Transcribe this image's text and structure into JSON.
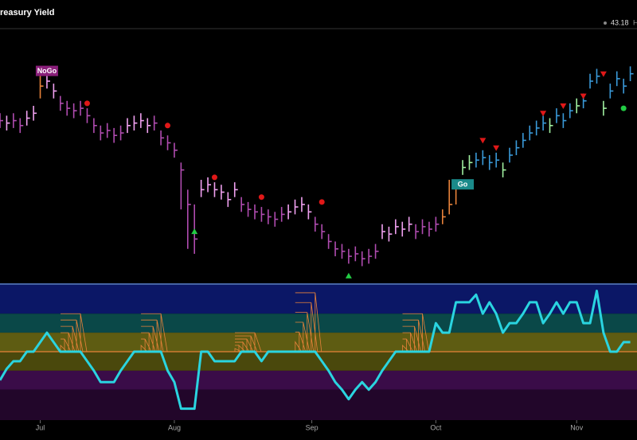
{
  "header": {
    "title": "reasury Yield",
    "price": "43.18",
    "extra": "H"
  },
  "chart_data": {
    "type": "ohlc",
    "xlim": [
      0,
      95
    ],
    "xticks": [
      {
        "value": 6,
        "label": "Jul"
      },
      {
        "value": 26,
        "label": "Aug"
      },
      {
        "value": 46.5,
        "label": "Sep"
      },
      {
        "value": 65,
        "label": "Oct"
      },
      {
        "value": 86,
        "label": "Nov"
      }
    ],
    "ylim": [
      0,
      100
    ],
    "high": [
      67,
      66,
      67,
      65,
      68,
      70,
      83,
      83,
      79,
      74,
      72,
      71,
      72,
      69,
      65,
      62,
      63,
      61,
      62,
      65,
      66,
      67,
      65,
      66,
      60,
      58,
      55,
      47,
      36,
      30,
      40,
      41,
      39,
      38,
      35,
      39,
      33,
      31,
      30,
      29,
      28,
      27,
      29,
      30,
      32,
      33,
      30,
      25,
      22,
      18,
      15,
      14,
      12,
      13,
      11,
      12,
      14,
      22,
      21,
      24,
      23,
      25,
      22,
      24,
      23,
      25,
      28,
      40,
      40,
      48,
      50,
      51,
      52,
      50,
      51,
      47,
      53,
      56,
      59,
      62,
      64,
      66,
      65,
      69,
      67,
      71,
      73,
      75,
      83,
      85,
      72,
      79,
      84,
      81,
      86
    ],
    "low": [
      61,
      60,
      61,
      59,
      62,
      64,
      73,
      77,
      73,
      68,
      66,
      65,
      66,
      63,
      59,
      56,
      57,
      55,
      56,
      59,
      60,
      61,
      59,
      60,
      54,
      52,
      49,
      28,
      12,
      10,
      33,
      35,
      33,
      32,
      29,
      33,
      27,
      25,
      24,
      23,
      22,
      21,
      23,
      24,
      26,
      27,
      24,
      19,
      16,
      12,
      9,
      8,
      6,
      7,
      5,
      6,
      8,
      16,
      15,
      18,
      17,
      19,
      16,
      18,
      17,
      19,
      22,
      26,
      30,
      42,
      44,
      45,
      46,
      44,
      45,
      41,
      47,
      50,
      53,
      56,
      58,
      60,
      59,
      63,
      61,
      65,
      67,
      69,
      77,
      79,
      66,
      73,
      78,
      75,
      80
    ],
    "close": [
      64,
      63,
      64,
      62,
      65,
      67,
      78,
      80,
      76,
      71,
      69,
      68,
      69,
      66,
      62,
      59,
      60,
      58,
      59,
      62,
      63,
      64,
      62,
      63,
      57,
      55,
      52,
      44,
      30,
      16,
      36,
      38,
      36,
      35,
      32,
      36,
      30,
      28,
      27,
      26,
      25,
      24,
      26,
      27,
      29,
      30,
      27,
      22,
      19,
      15,
      12,
      11,
      9,
      10,
      8,
      9,
      11,
      19,
      18,
      21,
      20,
      22,
      19,
      21,
      20,
      22,
      25,
      30,
      38,
      45,
      47,
      48,
      49,
      47,
      48,
      44,
      50,
      53,
      56,
      59,
      61,
      63,
      62,
      66,
      64,
      68,
      70,
      72,
      80,
      82,
      69,
      76,
      81,
      78,
      83
    ],
    "colors": [
      "#b04cb0",
      "#f0a0f0",
      "#b04cb0",
      "#b04cb0",
      "#f0a0f0",
      "#f0a0f0",
      "#e8823a",
      "#f0a0f0",
      "#f0a0f0",
      "#b04cb0",
      "#b04cb0",
      "#b04cb0",
      "#b04cb0",
      "#b04cb0",
      "#b04cb0",
      "#b04cb0",
      "#b04cb0",
      "#b04cb0",
      "#b04cb0",
      "#f0a0f0",
      "#f0a0f0",
      "#f0a0f0",
      "#f0a0f0",
      "#b04cb0",
      "#b04cb0",
      "#b04cb0",
      "#b04cb0",
      "#b04cb0",
      "#b04cb0",
      "#b04cb0",
      "#f0a0f0",
      "#f0a0f0",
      "#f0a0f0",
      "#f0a0f0",
      "#f0a0f0",
      "#f0a0f0",
      "#b04cb0",
      "#b04cb0",
      "#b04cb0",
      "#b04cb0",
      "#b04cb0",
      "#b04cb0",
      "#b04cb0",
      "#f0a0f0",
      "#f0a0f0",
      "#f0a0f0",
      "#f0a0f0",
      "#b04cb0",
      "#b04cb0",
      "#b04cb0",
      "#b04cb0",
      "#b04cb0",
      "#b04cb0",
      "#b04cb0",
      "#b04cb0",
      "#b04cb0",
      "#b04cb0",
      "#f0a0f0",
      "#f0a0f0",
      "#f0a0f0",
      "#f0a0f0",
      "#f0a0f0",
      "#b04cb0",
      "#b04cb0",
      "#b04cb0",
      "#b04cb0",
      "#e8823a",
      "#e8823a",
      "#e8823a",
      "#a0f0a0",
      "#a0f0a0",
      "#3a9ad9",
      "#3a9ad9",
      "#3a9ad9",
      "#3a9ad9",
      "#a0f0a0",
      "#3a9ad9",
      "#3a9ad9",
      "#3a9ad9",
      "#3a9ad9",
      "#3a9ad9",
      "#3a9ad9",
      "#a0f0a0",
      "#3a9ad9",
      "#3a9ad9",
      "#3a9ad9",
      "#a0f0a0",
      "#3a9ad9",
      "#3a9ad9",
      "#3a9ad9",
      "#a0f0a0",
      "#3a9ad9",
      "#3a9ad9",
      "#3a9ad9",
      "#3a9ad9"
    ],
    "markers": [
      {
        "shape": "circle",
        "color": "#e01818",
        "x": [
          13,
          25,
          32,
          39,
          48
        ],
        "values": [
          71,
          62,
          41,
          33,
          31
        ]
      },
      {
        "shape": "triangle-down",
        "color": "#e01818",
        "x": [
          72,
          74,
          81,
          84,
          87,
          90
        ],
        "values": [
          56,
          53,
          67,
          70,
          74,
          83
        ]
      },
      {
        "shape": "triangle-up",
        "color": "#22cc44",
        "x": [
          29,
          52
        ],
        "values": [
          19,
          1
        ]
      },
      {
        "shape": "circle",
        "color": "#22cc44",
        "x": [
          93
        ],
        "values": [
          69
        ]
      }
    ],
    "annotations": [
      {
        "text": "NoGo",
        "x": 7,
        "value": 84,
        "color": "#8a1f7a"
      },
      {
        "text": "Go",
        "x": 69,
        "value": 38,
        "color": "#1a8a8a"
      }
    ],
    "oscillator": {
      "ylim": [
        -3.6,
        3.6
      ],
      "color": "#2ad4e0",
      "zero_color": "#e8823a",
      "bands": [
        {
          "from": 2,
          "to": 3.6,
          "color": "#0b1766"
        },
        {
          "from": 1,
          "to": 2,
          "color": "#0a4848"
        },
        {
          "from": 0,
          "to": 1,
          "color": "#5e5c12"
        },
        {
          "from": -1,
          "to": 0,
          "color": "#4a480c"
        },
        {
          "from": -2,
          "to": -1,
          "color": "#3a0c48"
        },
        {
          "from": -3.6,
          "to": -2,
          "color": "#22062a"
        }
      ],
      "values": [
        -1.5,
        -0.9,
        -0.5,
        -0.5,
        0,
        0,
        0.5,
        1,
        0.5,
        0,
        0,
        0,
        0,
        -0.5,
        -1,
        -1.6,
        -1.6,
        -1.6,
        -1,
        -0.5,
        0,
        0,
        0,
        0,
        0,
        -1,
        -1.6,
        -3,
        -3,
        -3,
        0,
        0,
        -0.5,
        -0.5,
        -0.5,
        -0.5,
        0,
        0,
        0,
        -0.5,
        0,
        0,
        0,
        0,
        0,
        0,
        0,
        0,
        -0.5,
        -1,
        -1.6,
        -2,
        -2.5,
        -2,
        -1.6,
        -2,
        -1.6,
        -1,
        -0.5,
        0,
        0,
        0,
        0,
        0,
        0,
        1.5,
        1,
        1,
        2.6,
        2.6,
        2.6,
        3,
        2,
        2.6,
        2,
        1,
        1.5,
        1.5,
        2,
        2.6,
        2.6,
        1.5,
        2,
        2.6,
        2,
        2.6,
        2.6,
        1.5,
        1.5,
        3.2,
        1,
        0,
        0,
        0.5,
        0.5
      ],
      "squeeze": {
        "color": "#e8823a",
        "x": [
          12,
          24,
          38,
          47,
          63
        ],
        "values": [
          2,
          2,
          1,
          3.1,
          2
        ]
      }
    }
  }
}
